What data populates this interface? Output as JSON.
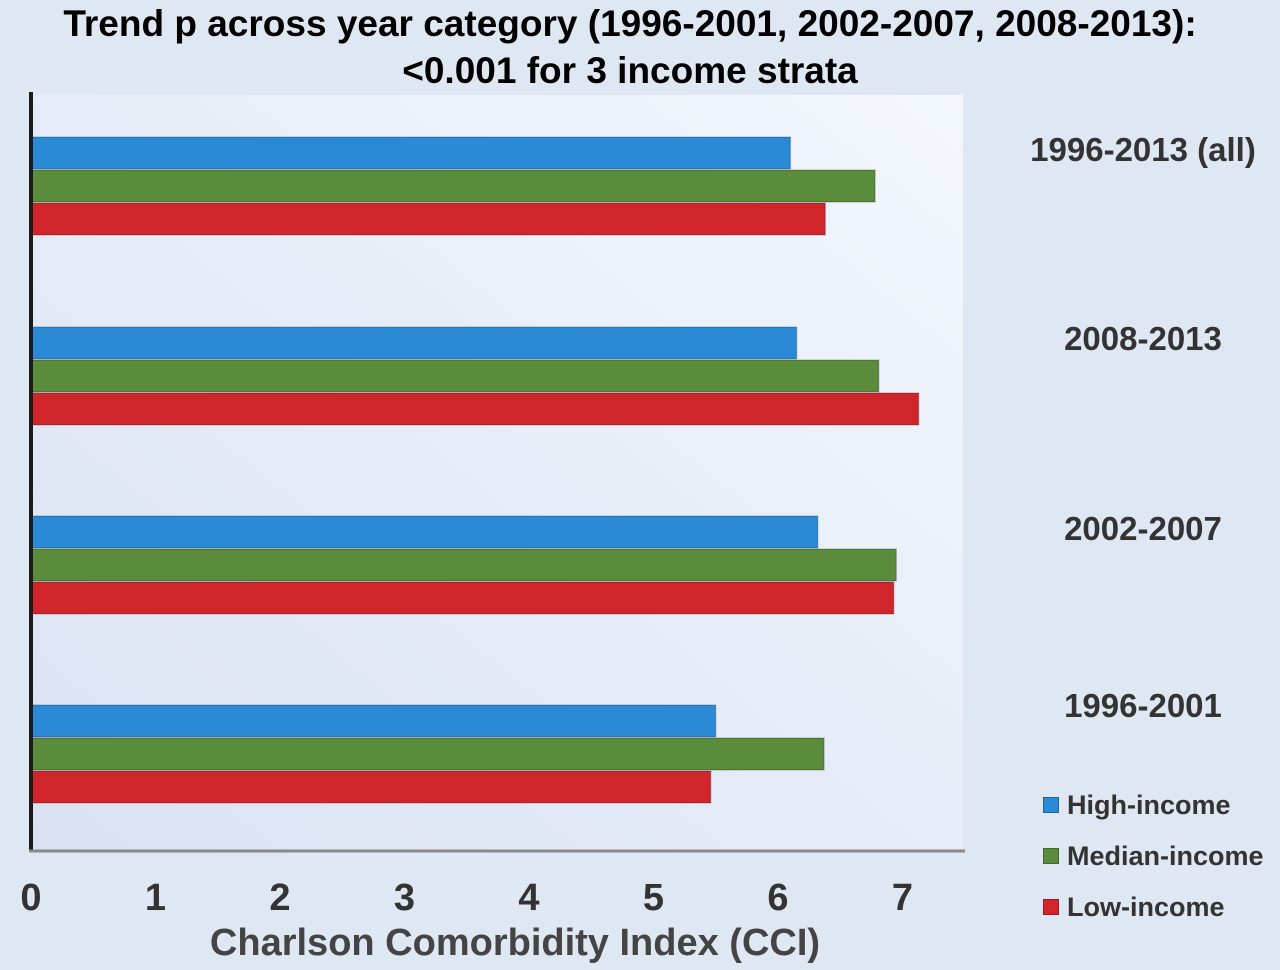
{
  "chart_data": {
    "type": "bar",
    "orientation": "horizontal",
    "title_lines": [
      "Trend p across year category (1996-2001, 2002-2007, 2008-2013):",
      "<0.001 for 3 income strata"
    ],
    "xlabel": "Charlson Comorbidity Index (CCI)",
    "ylabel": "",
    "xlim": [
      0,
      7.5
    ],
    "xticks": [
      "0",
      "1",
      "2",
      "3",
      "4",
      "5",
      "6",
      "7"
    ],
    "categories": [
      "1996-2013 (all)",
      "2008-2013",
      "2002-2007",
      "1996-2001"
    ],
    "series": [
      {
        "name": "High-income",
        "color": "#2b8ad6",
        "values": [
          6.1,
          6.15,
          6.32,
          5.5
        ]
      },
      {
        "name": "Median-income",
        "color": "#5a8c3c",
        "values": [
          6.78,
          6.81,
          6.95,
          6.37
        ]
      },
      {
        "name": "Low-income",
        "color": "#d0252b",
        "values": [
          6.38,
          7.13,
          6.93,
          5.46
        ]
      }
    ],
    "legend_position": "bottom-right",
    "grid": false
  }
}
